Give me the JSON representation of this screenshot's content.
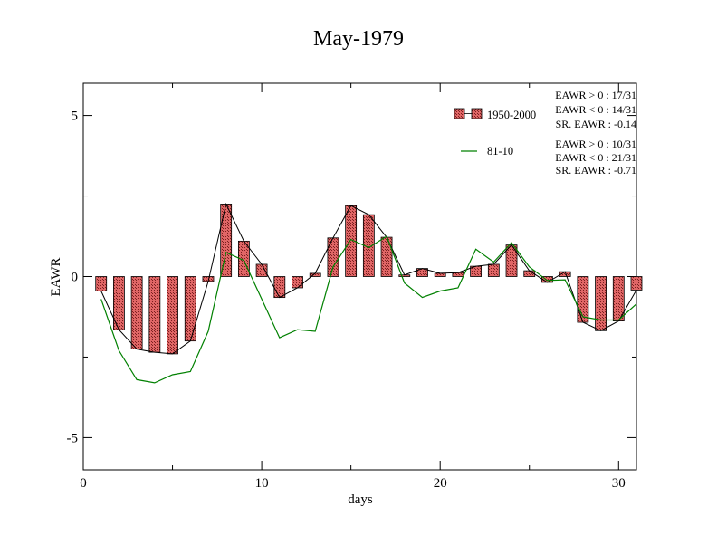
{
  "chart_data": {
    "type": "bar",
    "title": "May-1979",
    "xlabel": "days",
    "ylabel": "EAWR",
    "xlim": [
      0,
      31
    ],
    "ylim": [
      -6,
      6
    ],
    "xticks": [
      0,
      10,
      20,
      30
    ],
    "yticks": [
      -5,
      0,
      5
    ],
    "x": [
      1,
      2,
      3,
      4,
      5,
      6,
      7,
      8,
      9,
      10,
      11,
      12,
      13,
      14,
      15,
      16,
      17,
      18,
      19,
      20,
      21,
      22,
      23,
      24,
      25,
      26,
      27,
      28,
      29,
      30,
      31
    ],
    "series": [
      {
        "name": "1950-2000",
        "kind": "bar",
        "color": "#e06666",
        "values": [
          -0.45,
          -1.65,
          -2.25,
          -2.35,
          -2.4,
          -2.0,
          -0.15,
          2.25,
          1.1,
          0.38,
          -0.65,
          -0.35,
          0.1,
          1.2,
          2.2,
          1.92,
          1.22,
          0.05,
          0.25,
          0.1,
          0.12,
          0.32,
          0.38,
          0.98,
          0.18,
          -0.18,
          0.15,
          -1.42,
          -1.68,
          -1.38,
          -0.42
        ]
      },
      {
        "name": "81-10",
        "kind": "line",
        "color": "#008000",
        "values": [
          -0.7,
          -2.3,
          -3.2,
          -3.3,
          -3.05,
          -2.95,
          -1.7,
          0.75,
          0.5,
          -0.7,
          -1.9,
          -1.65,
          -1.7,
          0.3,
          1.15,
          0.9,
          1.25,
          -0.2,
          -0.65,
          -0.45,
          -0.35,
          0.85,
          0.45,
          1.05,
          0.3,
          -0.12,
          -0.1,
          -1.25,
          -1.35,
          -1.35,
          -0.85
        ]
      }
    ],
    "legend": {
      "position": "top-right",
      "entries": [
        "1950-2000",
        "81-10"
      ]
    },
    "annotations": {
      "group1": [
        "EAWR > 0 : 17/31",
        "EAWR < 0 : 14/31",
        "SR. EAWR : -0.14"
      ],
      "group2": [
        "EAWR > 0 : 10/31",
        "EAWR < 0 : 21/31",
        "SR. EAWR : -0.71"
      ]
    },
    "grid": false
  }
}
